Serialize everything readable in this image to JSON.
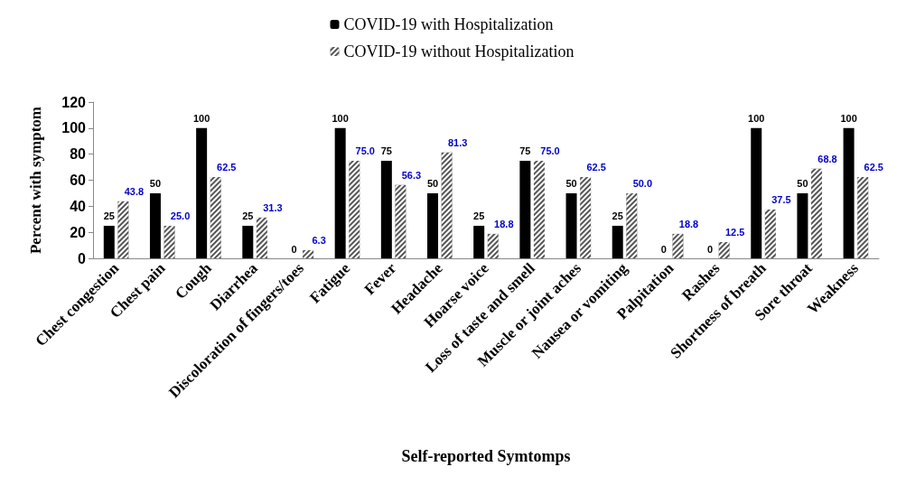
{
  "chart_data": {
    "type": "bar",
    "xlabel": "Self-reported Symtomps",
    "ylabel": "Percent with symptom",
    "categories": [
      "Chest congestion",
      "Chest pain",
      "Cough",
      "Diarrhea",
      "Discoloration of fingers/toes",
      "Fatigue",
      "Fever",
      "Headache",
      "Hoarse voice",
      "Loss of taste and smell",
      "Muscle or joint aches",
      "Nausea or vomiting",
      "Palpitation",
      "Rashes",
      "Shortness of breath",
      "Sore throat",
      "Weakness"
    ],
    "series": [
      {
        "name": "COVID-19 with Hospitalization",
        "color": "#000000",
        "values": [
          25,
          50,
          100,
          25,
          0,
          100,
          75,
          50,
          25,
          75,
          50,
          25,
          0,
          0,
          100,
          50,
          100
        ],
        "value_labels": [
          "25",
          "50",
          "100",
          "25",
          "0",
          "100",
          "75",
          "50",
          "25",
          "75",
          "50",
          "25",
          "0",
          "0",
          "100",
          "50",
          "100"
        ]
      },
      {
        "name": "COVID-19 without Hospitalization",
        "color": "#555555",
        "values": [
          43.8,
          25.0,
          62.5,
          31.3,
          6.3,
          75.0,
          56.3,
          81.3,
          18.8,
          75.0,
          62.5,
          50.0,
          18.8,
          12.5,
          37.5,
          68.8,
          62.5
        ],
        "value_labels": [
          "43.8",
          "25.0",
          "62.5",
          "31.3",
          "6.3",
          "75.0",
          "56.3",
          "81.3",
          "18.8",
          "75.0",
          "62.5",
          "50.0",
          "18.8",
          "12.5",
          "37.5",
          "68.8",
          "62.5"
        ]
      }
    ],
    "ylim": [
      0,
      120
    ],
    "yticks": [
      0,
      20,
      40,
      60,
      80,
      100,
      120
    ],
    "grid": false,
    "legend": "top"
  }
}
